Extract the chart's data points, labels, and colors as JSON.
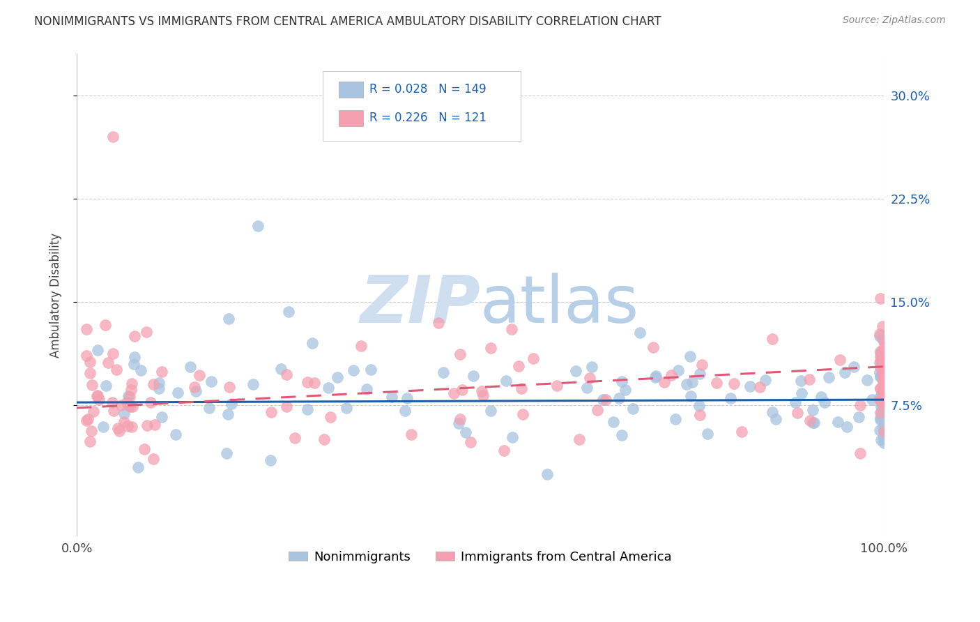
{
  "title": "NONIMMIGRANTS VS IMMIGRANTS FROM CENTRAL AMERICA AMBULATORY DISABILITY CORRELATION CHART",
  "source": "Source: ZipAtlas.com",
  "ylabel": "Ambulatory Disability",
  "xlim": [
    0.0,
    1.0
  ],
  "ylim": [
    -0.02,
    0.33
  ],
  "yticks": [
    0.075,
    0.15,
    0.225,
    0.3
  ],
  "ytick_labels": [
    "7.5%",
    "15.0%",
    "22.5%",
    "30.0%"
  ],
  "xticks": [
    0.0,
    0.25,
    0.5,
    0.75,
    1.0
  ],
  "xtick_labels": [
    "0.0%",
    "",
    "",
    "",
    "100.0%"
  ],
  "blue_color": "#a8c4e0",
  "pink_color": "#f4a0b0",
  "blue_line_color": "#1a5fa8",
  "pink_line_color": "#e05878",
  "legend_text_color": "#1a5fa8",
  "watermark_color": "#d0dff0",
  "legend": {
    "blue_R": "0.028",
    "blue_N": "149",
    "pink_R": "0.226",
    "pink_N": "121"
  }
}
